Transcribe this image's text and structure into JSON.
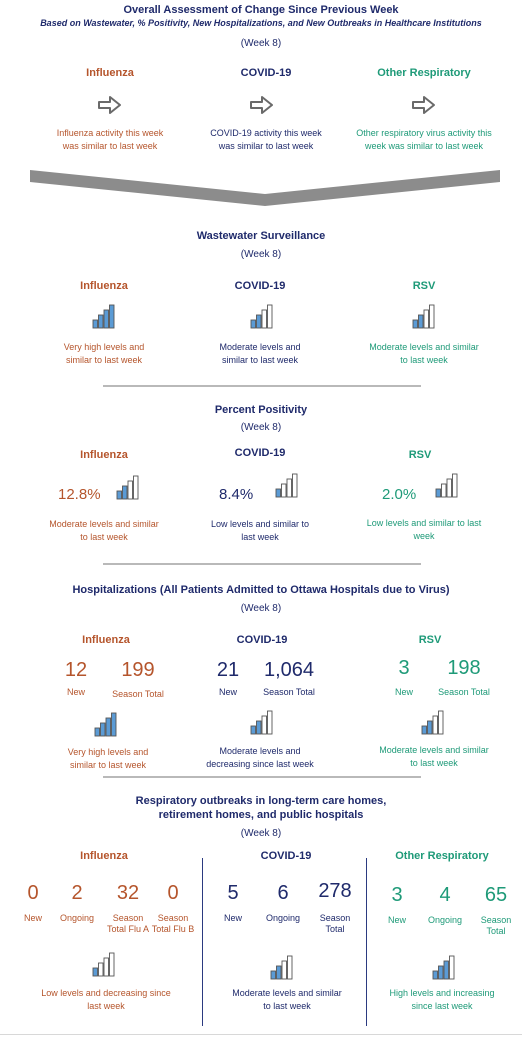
{
  "overall": {
    "title": "Overall Assessment of Change Since Previous Week",
    "subtitle": "Based on Wastewater, % Positivity, New Hospitalizations, and New Outbreaks in Healthcare Institutions",
    "week": "(Week 8)",
    "cols": [
      {
        "head": "Influenza",
        "desc1": "Influenza activity this week",
        "desc2": "was similar to last week",
        "icon": "right-arrow-icon"
      },
      {
        "head": "COVID-19",
        "desc1": "COVID-19 activity this week",
        "desc2": "was similar to last week",
        "icon": "right-arrow-icon"
      },
      {
        "head": "Other Respiratory",
        "desc1": "Other respiratory virus activity this",
        "desc2": "week was similar to last week",
        "icon": "right-arrow-icon"
      }
    ]
  },
  "wastewater": {
    "title": "Wastewater Surveillance",
    "week": "(Week 8)",
    "cols": [
      {
        "head": "Influenza",
        "desc1": "Very high levels and",
        "desc2": "similar to last week",
        "level": 4
      },
      {
        "head": "COVID-19",
        "desc1": "Moderate levels and",
        "desc2": "similar to last week",
        "level": 2
      },
      {
        "head": "RSV",
        "desc1": "Moderate levels and similar",
        "desc2": "to last week",
        "level": 2
      }
    ]
  },
  "positivity": {
    "title": "Percent Positivity",
    "week": "(Week 8)",
    "cols": [
      {
        "head": "Influenza",
        "value": "12.8%",
        "desc1": "Moderate levels and similar",
        "desc2": "to last week",
        "level": 2
      },
      {
        "head": "COVID-19",
        "value": "8.4%",
        "desc1": "Low levels and similar to",
        "desc2": "last week",
        "level": 1
      },
      {
        "head": "RSV",
        "value": "2.0%",
        "desc1": "Low levels and similar to last",
        "desc2": "week",
        "level": 1
      }
    ]
  },
  "hospitalizations": {
    "title": "Hospitalizations (All Patients Admitted to Ottawa Hospitals due to Virus)",
    "week": "(Week 8)",
    "cols": [
      {
        "head": "Influenza",
        "new": "12",
        "new_label": "New",
        "season": "199",
        "season_label": "Season Total",
        "desc1": "Very high levels and",
        "desc2": "similar to last week",
        "level": 4
      },
      {
        "head": "COVID-19",
        "new": "21",
        "new_label": "New",
        "season": "1,064",
        "season_label": "Season Total",
        "desc1": "Moderate levels and",
        "desc2": "decreasing since last week",
        "level": 2
      },
      {
        "head": "RSV",
        "new": "3",
        "new_label": "New",
        "season": "198",
        "season_label": "Season Total",
        "desc1": "Moderate levels and similar",
        "desc2": "to last week",
        "level": 2
      }
    ]
  },
  "outbreaks": {
    "title1": "Respiratory outbreaks in long-term care homes,",
    "title2": "retirement homes, and public hospitals",
    "week": "(Week 8)",
    "influenza": {
      "head": "Influenza",
      "stats": [
        {
          "value": "0",
          "label1": "New",
          "label2": ""
        },
        {
          "value": "2",
          "label1": "Ongoing",
          "label2": ""
        },
        {
          "value": "32",
          "label1": "Season",
          "label2": "Total Flu A"
        },
        {
          "value": "0",
          "label1": "Season",
          "label2": "Total Flu B"
        }
      ],
      "desc1": "Low levels and decreasing since",
      "desc2": "last week",
      "level": 1
    },
    "covid": {
      "head": "COVID-19",
      "stats": [
        {
          "value": "5",
          "label1": "New",
          "label2": ""
        },
        {
          "value": "6",
          "label1": "Ongoing",
          "label2": ""
        },
        {
          "value": "278",
          "label1": "Season",
          "label2": "Total"
        }
      ],
      "desc1": "Moderate levels and similar",
      "desc2": "to last week",
      "level": 2
    },
    "other": {
      "head": "Other Respiratory",
      "stats": [
        {
          "value": "3",
          "label1": "New",
          "label2": ""
        },
        {
          "value": "4",
          "label1": "Ongoing",
          "label2": ""
        },
        {
          "value": "65",
          "label1": "Season",
          "label2": "Total"
        }
      ],
      "desc1": "High levels and increasing",
      "desc2": "since last week",
      "level": 3
    }
  },
  "colors": {
    "navy": "#1f2a6b",
    "influenza": "#b5552c",
    "other": "#1e9a78",
    "bar_fill": "#5b9bd5",
    "divider": "#b9b9b9"
  }
}
